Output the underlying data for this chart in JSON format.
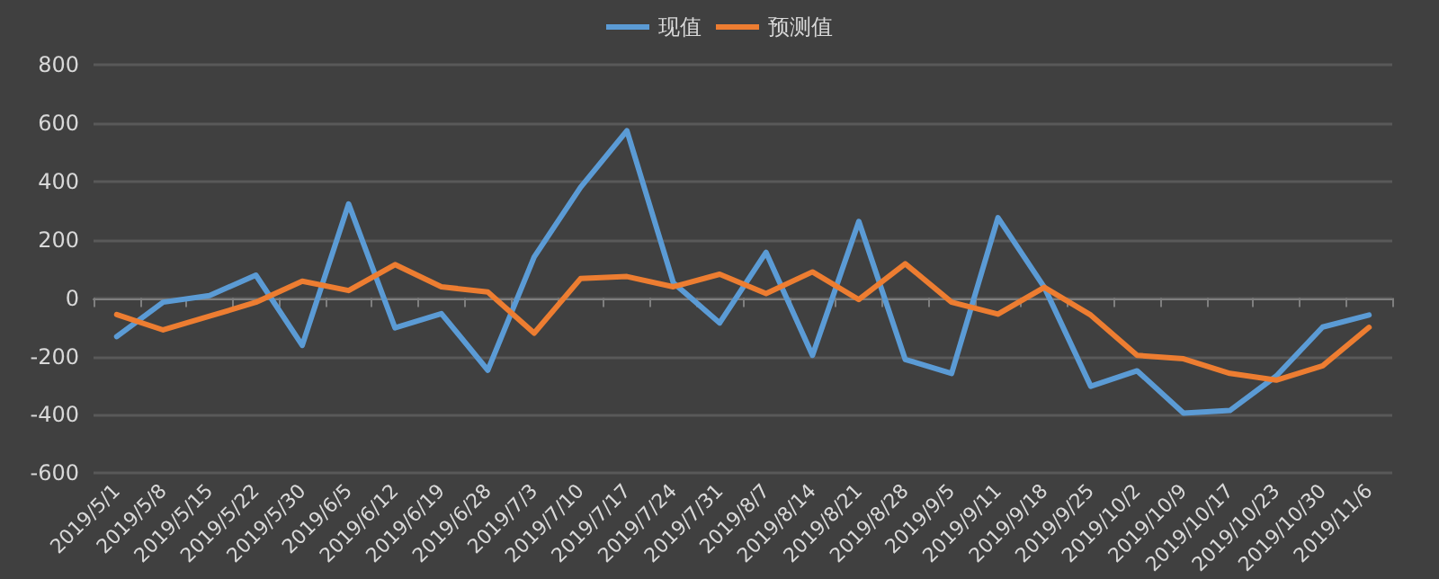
{
  "chart_data": {
    "type": "line",
    "categories": [
      "2019/5/1",
      "2019/5/8",
      "2019/5/15",
      "2019/5/22",
      "2019/5/30",
      "2019/6/5",
      "2019/6/12",
      "2019/6/19",
      "2019/6/28",
      "2019/7/3",
      "2019/7/10",
      "2019/7/17",
      "2019/7/24",
      "2019/7/31",
      "2019/8/7",
      "2019/8/14",
      "2019/8/21",
      "2019/8/28",
      "2019/9/5",
      "2019/9/11",
      "2019/9/18",
      "2019/9/25",
      "2019/10/2",
      "2019/10/9",
      "2019/10/17",
      "2019/10/23",
      "2019/10/30",
      "2019/11/6"
    ],
    "series": [
      {
        "name": "现值",
        "color": "#5b9bd5",
        "values": [
          -132,
          -14,
          9,
          79,
          -162,
          323,
          -102,
          -53,
          -247,
          141,
          380,
          574,
          53,
          -85,
          157,
          -196,
          263,
          -210,
          -258,
          276,
          37,
          -302,
          -249,
          -394,
          -385,
          -267,
          -99,
          -58
        ]
      },
      {
        "name": "预测值",
        "color": "#ed7d31",
        "values": [
          -56,
          -109,
          -62,
          -14,
          58,
          26,
          115,
          39,
          21,
          -120,
          67,
          74,
          39,
          82,
          16,
          90,
          -5,
          118,
          -14,
          -55,
          37,
          -58,
          -196,
          -208,
          -258,
          -281,
          -232,
          -100
        ]
      }
    ],
    "ylim": [
      -600,
      800
    ],
    "yticks": [
      -600,
      -400,
      -200,
      0,
      200,
      400,
      600,
      800
    ],
    "grid": "y",
    "legend": "top",
    "marker": "none",
    "line_style": "solid"
  }
}
